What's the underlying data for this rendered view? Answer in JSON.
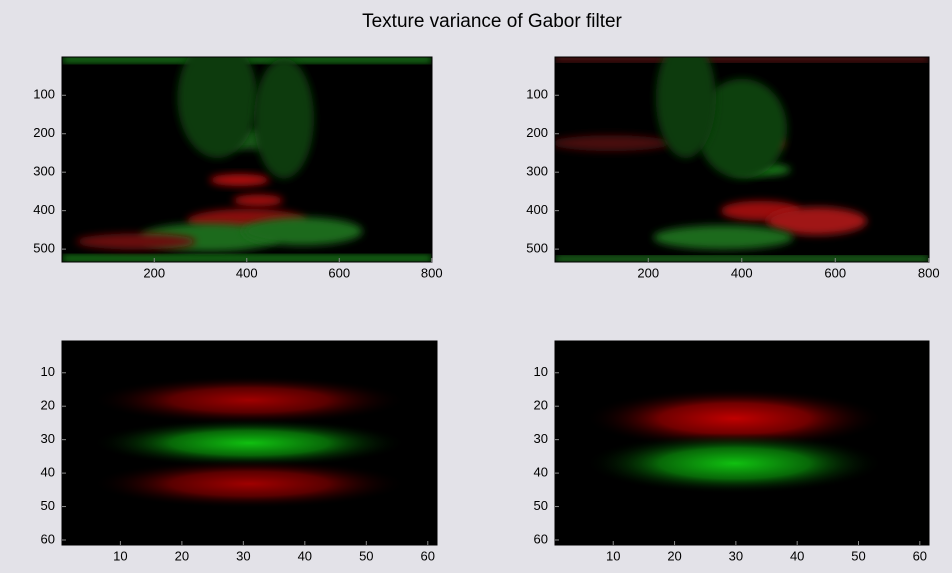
{
  "title": "Texture variance of Gabor filter",
  "chart_data": [
    {
      "type": "image",
      "xlim": [
        0.5,
        800.5
      ],
      "ylim": [
        0.5,
        533.5
      ],
      "xticks": [
        200,
        400,
        600,
        800
      ],
      "yticks": [
        100,
        200,
        300,
        400,
        500
      ]
    },
    {
      "type": "image",
      "xlim": [
        0.5,
        800.5
      ],
      "ylim": [
        0.5,
        533.5
      ],
      "xticks": [
        200,
        400,
        600,
        800
      ],
      "yticks": [
        100,
        200,
        300,
        400,
        500
      ]
    },
    {
      "type": "image",
      "xlim": [
        0.5,
        61.5
      ],
      "ylim": [
        0.5,
        61.5
      ],
      "xticks": [
        10,
        20,
        30,
        40,
        50,
        60
      ],
      "yticks": [
        10,
        20,
        30,
        40,
        50,
        60
      ]
    },
    {
      "type": "image",
      "xlim": [
        0.5,
        61.5
      ],
      "ylim": [
        0.5,
        61.5
      ],
      "xticks": [
        10,
        20,
        30,
        40,
        50,
        60
      ],
      "yticks": [
        10,
        20,
        30,
        40,
        50,
        60
      ]
    }
  ]
}
